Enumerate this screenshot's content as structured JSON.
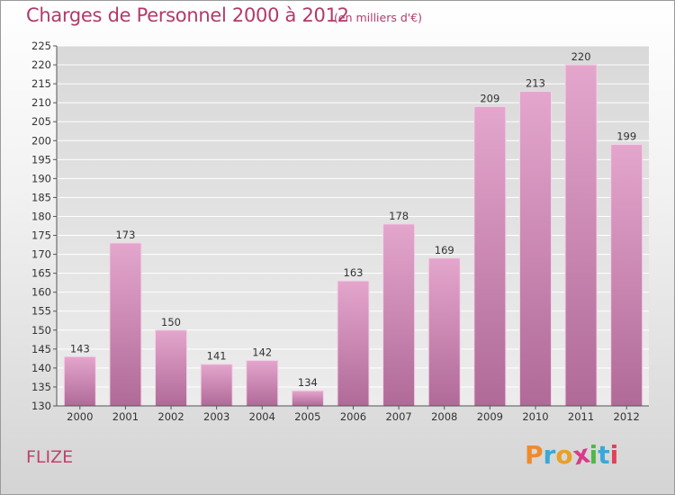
{
  "title": "Charges de Personnel 2000 à 2012",
  "subtitle": "(en milliers d'€)",
  "town": "FLIZE",
  "logo_text": "Proxiti",
  "colors": {
    "title": "#b23a6a",
    "bar_top": "#e4a6cd",
    "bar_bottom": "#b06a98",
    "grid": "#ffffff",
    "logo_letters": [
      "#f08a2c",
      "#3aa8d8",
      "#e8a02a",
      "#d93c8a",
      "#4fb848",
      "#3aa8d8",
      "#e0425a"
    ]
  },
  "chart_data": {
    "type": "bar",
    "categories": [
      "2000",
      "2001",
      "2002",
      "2003",
      "2004",
      "2005",
      "2006",
      "2007",
      "2008",
      "2009",
      "2010",
      "2011",
      "2012"
    ],
    "values": [
      143,
      173,
      150,
      141,
      142,
      134,
      163,
      178,
      169,
      209,
      213,
      220,
      199
    ],
    "yticks": [
      130,
      135,
      140,
      145,
      150,
      155,
      160,
      165,
      170,
      175,
      180,
      185,
      190,
      195,
      200,
      205,
      210,
      215,
      220,
      225
    ],
    "ylim": [
      130,
      225
    ],
    "grid": true,
    "xlabel": "",
    "ylabel": ""
  }
}
